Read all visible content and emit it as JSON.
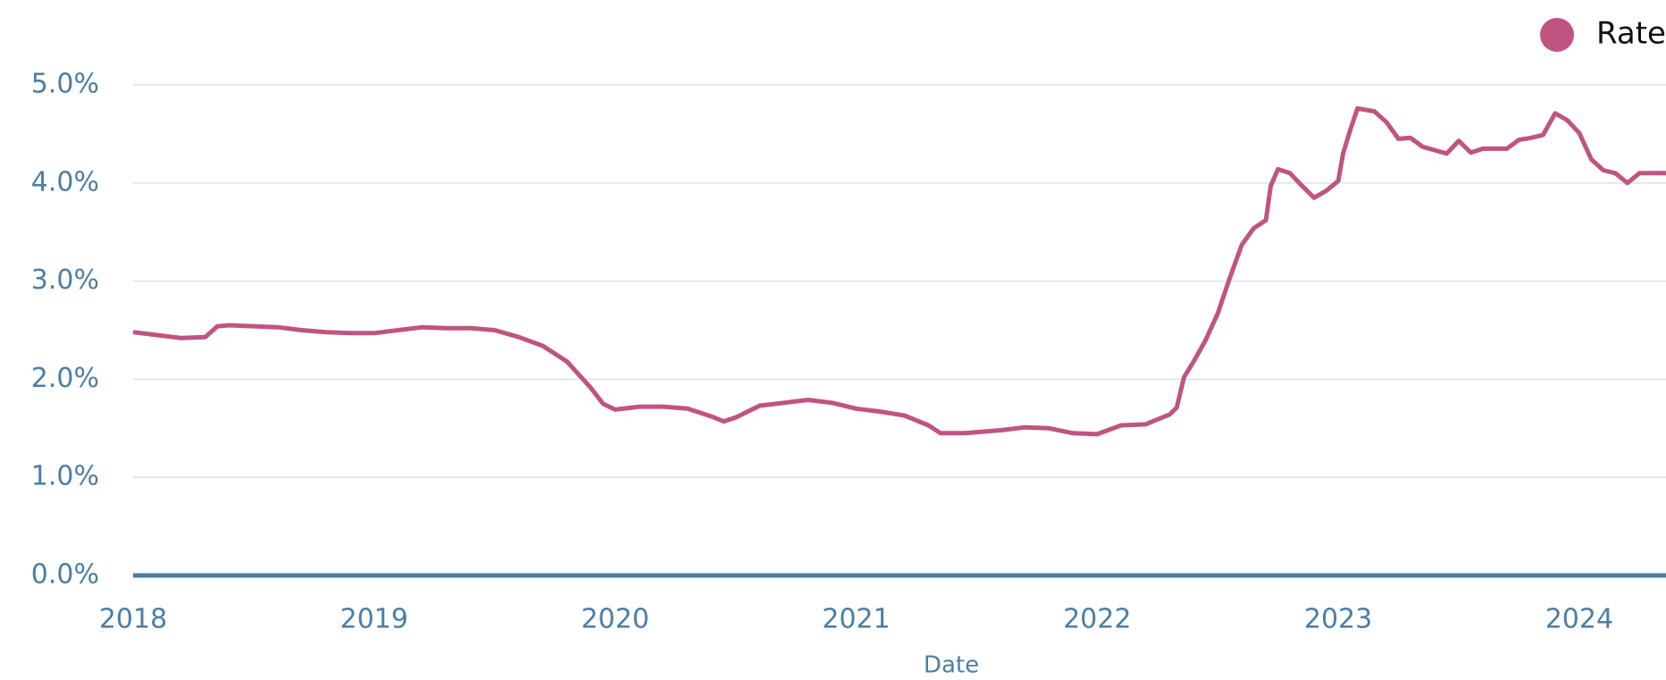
{
  "chart_data": {
    "type": "line",
    "xlabel": "Date",
    "xlim": [
      2018,
      2024.36
    ],
    "xticks": [
      2018,
      2019,
      2020,
      2021,
      2022,
      2023,
      2024
    ],
    "ylim": [
      0,
      5
    ],
    "yticks": [
      {
        "value": 0,
        "label": "0.0%"
      },
      {
        "value": 1,
        "label": "1.0%"
      },
      {
        "value": 2,
        "label": "2.0%"
      },
      {
        "value": 3,
        "label": "3.0%"
      },
      {
        "value": 4,
        "label": "4.0%"
      },
      {
        "value": 5,
        "label": "5.0%"
      }
    ],
    "grid": true,
    "legend": "top-right",
    "x": [
      2018.0,
      2018.1,
      2018.2,
      2018.3,
      2018.35,
      2018.4,
      2018.6,
      2018.7,
      2018.8,
      2018.9,
      2019.0,
      2019.1,
      2019.2,
      2019.3,
      2019.4,
      2019.5,
      2019.6,
      2019.7,
      2019.8,
      2019.9,
      2019.95,
      2020.0,
      2020.1,
      2020.2,
      2020.3,
      2020.4,
      2020.45,
      2020.5,
      2020.6,
      2020.7,
      2020.8,
      2020.9,
      2021.0,
      2021.1,
      2021.2,
      2021.3,
      2021.35,
      2021.45,
      2021.6,
      2021.7,
      2021.8,
      2021.9,
      2022.0,
      2022.1,
      2022.2,
      2022.3,
      2022.33,
      2022.36,
      2022.4,
      2022.45,
      2022.5,
      2022.55,
      2022.6,
      2022.65,
      2022.7,
      2022.72,
      2022.75,
      2022.8,
      2022.85,
      2022.9,
      2022.95,
      2023.0,
      2023.02,
      2023.05,
      2023.08,
      2023.15,
      2023.2,
      2023.25,
      2023.3,
      2023.35,
      2023.45,
      2023.5,
      2023.55,
      2023.6,
      2023.7,
      2023.75,
      2023.8,
      2023.85,
      2023.9,
      2023.95,
      2024.0,
      2024.05,
      2024.1,
      2024.15,
      2024.2,
      2024.25,
      2024.36
    ],
    "series": [
      {
        "name": "Rate",
        "color": "#c05480",
        "values": [
          2.48,
          2.45,
          2.42,
          2.43,
          2.54,
          2.55,
          2.53,
          2.5,
          2.48,
          2.47,
          2.47,
          2.5,
          2.53,
          2.52,
          2.52,
          2.5,
          2.43,
          2.34,
          2.18,
          1.91,
          1.75,
          1.69,
          1.72,
          1.72,
          1.7,
          1.62,
          1.57,
          1.61,
          1.73,
          1.76,
          1.79,
          1.76,
          1.7,
          1.67,
          1.63,
          1.53,
          1.45,
          1.45,
          1.48,
          1.51,
          1.5,
          1.45,
          1.44,
          1.53,
          1.54,
          1.64,
          1.71,
          2.02,
          2.18,
          2.4,
          2.67,
          3.03,
          3.37,
          3.54,
          3.62,
          3.97,
          4.14,
          4.1,
          3.97,
          3.85,
          3.92,
          4.02,
          4.3,
          4.54,
          4.76,
          4.73,
          4.62,
          4.45,
          4.46,
          4.37,
          4.3,
          4.43,
          4.31,
          4.35,
          4.35,
          4.44,
          4.46,
          4.49,
          4.71,
          4.64,
          4.51,
          4.24,
          4.13,
          4.1,
          4.0,
          4.1,
          4.1
        ]
      }
    ]
  }
}
